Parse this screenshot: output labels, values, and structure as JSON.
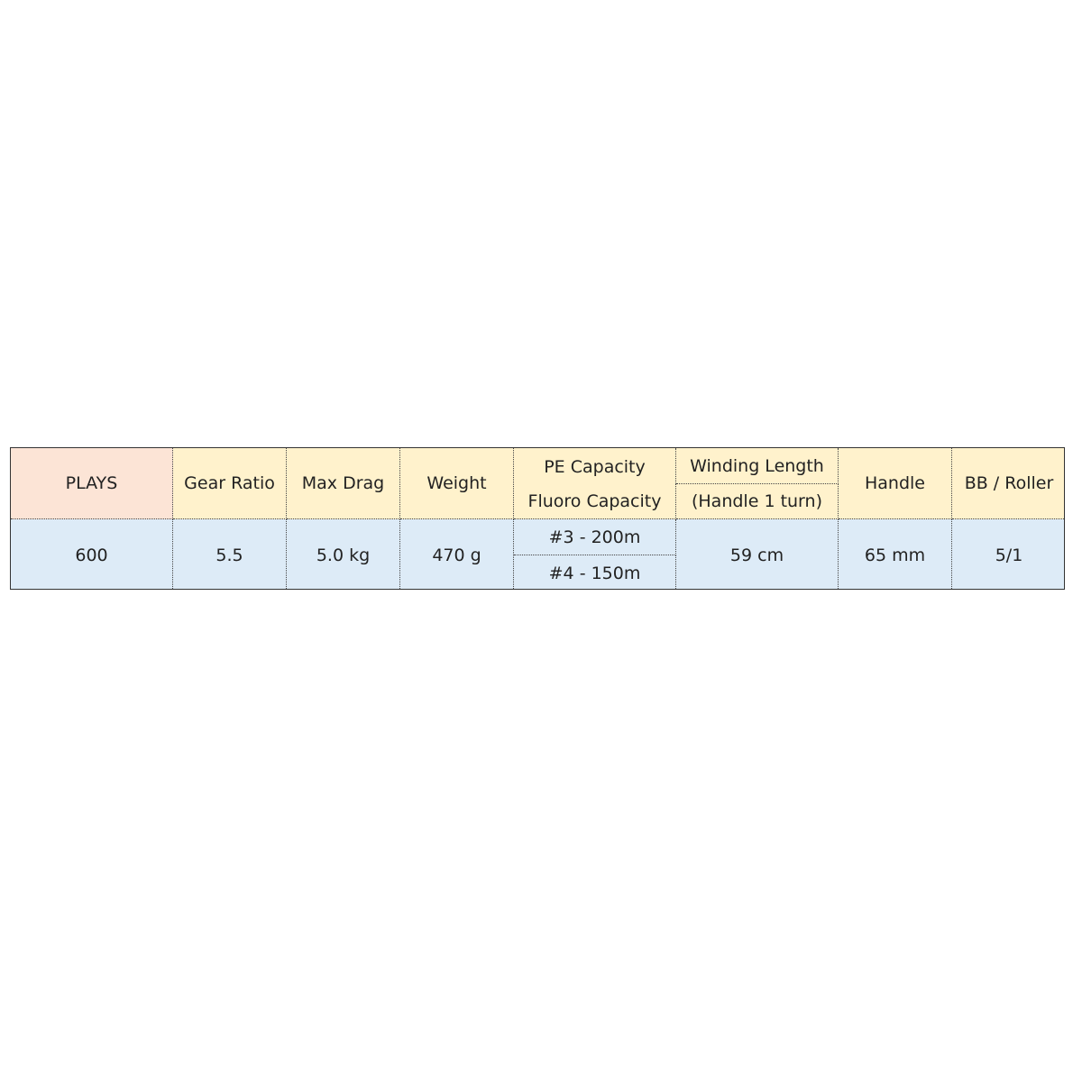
{
  "header": {
    "model": "PLAYS",
    "gear_ratio": "Gear Ratio",
    "max_drag": "Max Drag",
    "weight": "Weight",
    "pe_capacity": "PE Capacity",
    "fluoro_capacity": "Fluoro Capacity",
    "winding_length": "Winding Length",
    "winding_length_note": "(Handle 1 turn)",
    "handle": "Handle",
    "bb_roller": "BB / Roller"
  },
  "row": {
    "model": "600",
    "gear_ratio": "5.5",
    "max_drag": "5.0 kg",
    "weight": "470 g",
    "pe_capacity": "#3 - 200m",
    "fluoro_capacity": "#4 - 150m",
    "winding_length": "59 cm",
    "handle": "65 mm",
    "bb_roller": "5/1"
  },
  "colors": {
    "model_header": "#fce4d6",
    "header": "#fff2cc",
    "data": "#ddebf7"
  }
}
